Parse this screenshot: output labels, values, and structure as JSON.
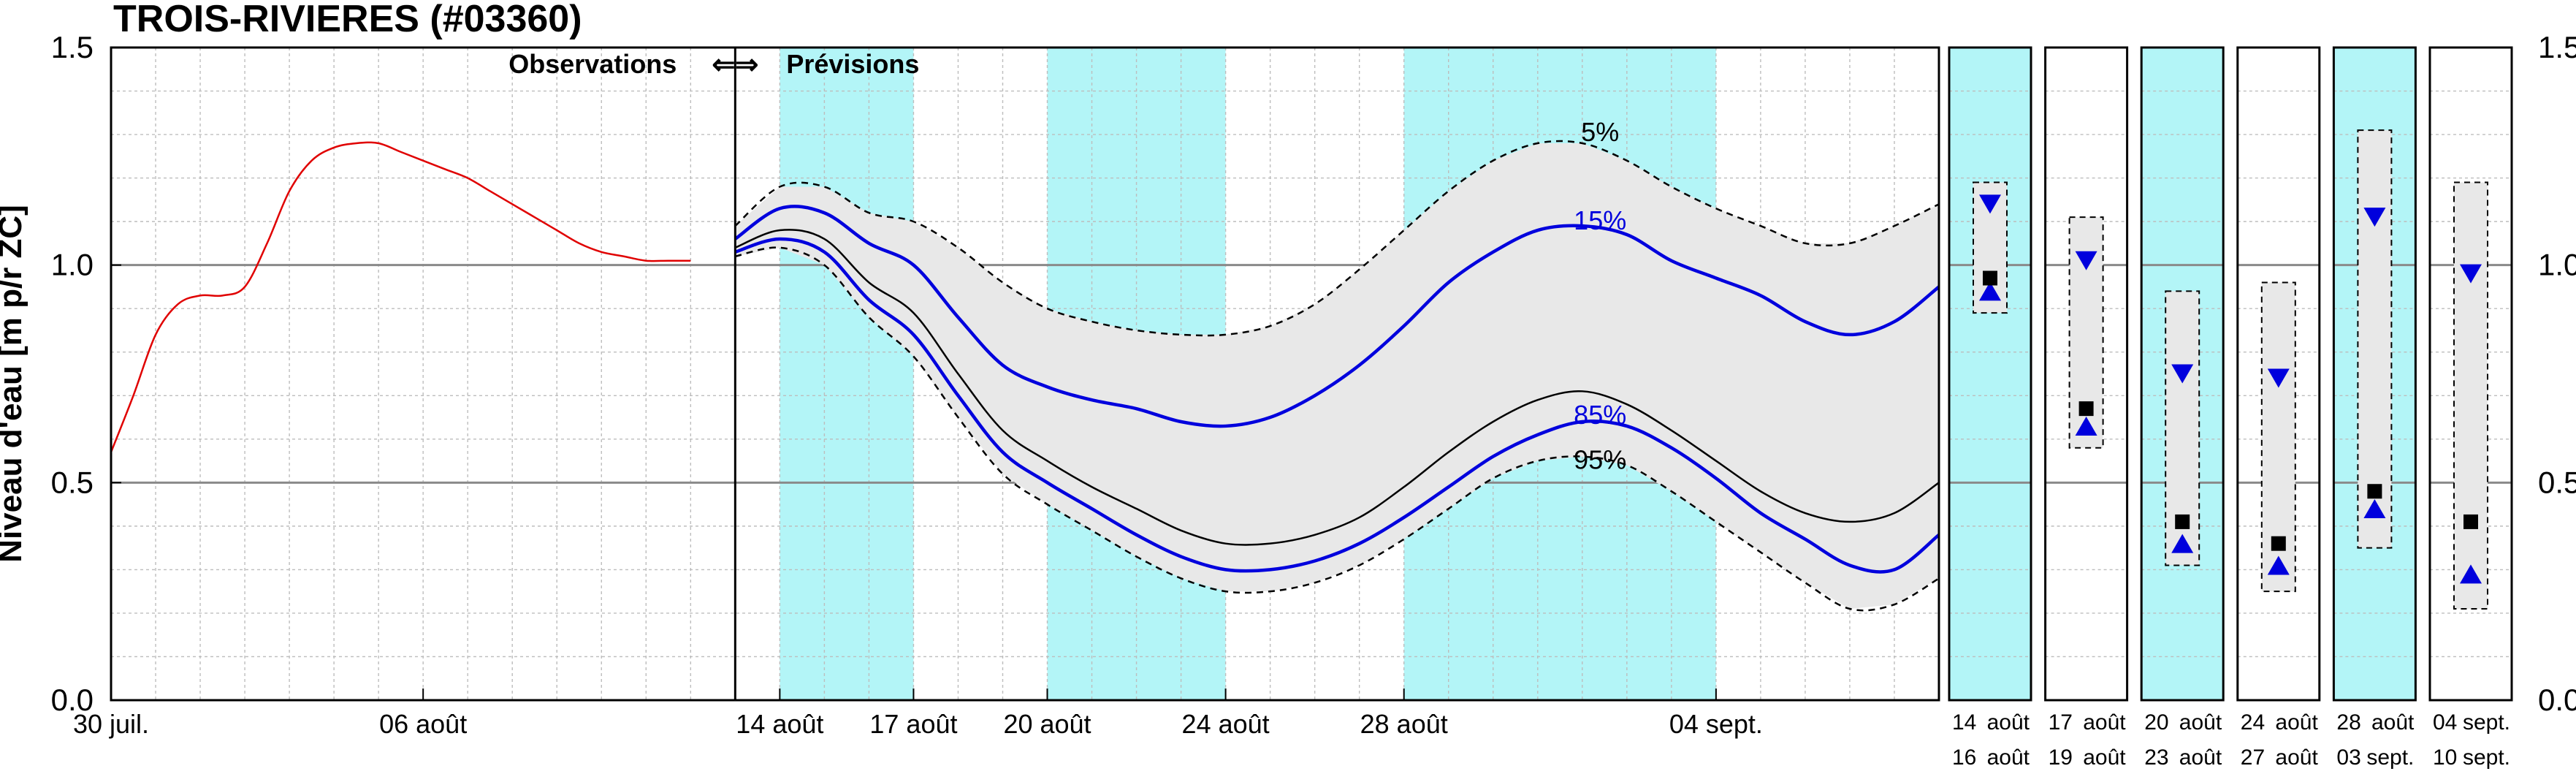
{
  "title": "TROIS-RIVIERES (#03360)",
  "chart_data": {
    "type": "line",
    "ylabel": "Niveau d'eau [m p/r ZC]",
    "ylim": [
      0.0,
      1.5
    ],
    "yticks": [
      "0.0",
      "0.5",
      "1.0",
      "1.5"
    ],
    "grid": true,
    "annotation_observations": "Observations",
    "annotation_arrows": "⇐⇒",
    "annotation_forecast": "Prévisions",
    "observations": {
      "color": "#e00000",
      "x": [
        0,
        0.5,
        1,
        1.5,
        2,
        2.5,
        3,
        3.5,
        4,
        4.5,
        5,
        5.5,
        6,
        6.5,
        7,
        7.5,
        8,
        8.5,
        9,
        9.5,
        10,
        10.5,
        11,
        11.5,
        12,
        12.5,
        13
      ],
      "y": [
        0.57,
        0.7,
        0.84,
        0.91,
        0.93,
        0.93,
        0.95,
        1.05,
        1.17,
        1.24,
        1.27,
        1.28,
        1.28,
        1.26,
        1.24,
        1.22,
        1.2,
        1.17,
        1.14,
        1.11,
        1.08,
        1.05,
        1.03,
        1.02,
        1.01,
        1.01,
        1.01
      ]
    },
    "x_tick_labels_main": [
      {
        "x": 0,
        "label": "30 juil."
      },
      {
        "x": 7,
        "label": "06 août"
      },
      {
        "x": 15,
        "label": "14 août"
      },
      {
        "x": 18,
        "label": "17 août"
      },
      {
        "x": 21,
        "label": "20 août"
      },
      {
        "x": 25,
        "label": "24 août"
      },
      {
        "x": 29,
        "label": "28 août"
      },
      {
        "x": 36,
        "label": "04 sept."
      }
    ],
    "shaded_periods": [
      [
        15,
        18
      ],
      [
        21,
        25
      ],
      [
        29,
        36
      ]
    ],
    "forecast_x": [
      14,
      15,
      16,
      17,
      18,
      19,
      20,
      21,
      22,
      23,
      24,
      25,
      26,
      27,
      28,
      29,
      30,
      31,
      32,
      33,
      34,
      35,
      36,
      37,
      38,
      39,
      40,
      41
    ],
    "series": [
      {
        "name": "5%",
        "style": "dashed",
        "color": "#000000",
        "y": [
          1.09,
          1.18,
          1.18,
          1.12,
          1.1,
          1.04,
          0.96,
          0.9,
          0.87,
          0.85,
          0.84,
          0.84,
          0.86,
          0.91,
          0.99,
          1.08,
          1.17,
          1.24,
          1.28,
          1.28,
          1.24,
          1.18,
          1.13,
          1.09,
          1.05,
          1.05,
          1.09,
          1.14
        ]
      },
      {
        "name": "15%",
        "style": "solid",
        "color": "#0000dd",
        "y": [
          1.06,
          1.13,
          1.12,
          1.05,
          1.0,
          0.88,
          0.77,
          0.72,
          0.69,
          0.67,
          0.64,
          0.63,
          0.65,
          0.7,
          0.77,
          0.86,
          0.96,
          1.03,
          1.08,
          1.09,
          1.07,
          1.01,
          0.97,
          0.93,
          0.87,
          0.84,
          0.87,
          0.95
        ]
      },
      {
        "name": "",
        "style": "solid",
        "color": "#000000",
        "y": [
          1.04,
          1.08,
          1.06,
          0.96,
          0.89,
          0.75,
          0.62,
          0.55,
          0.49,
          0.44,
          0.39,
          0.36,
          0.36,
          0.38,
          0.42,
          0.49,
          0.57,
          0.64,
          0.69,
          0.71,
          0.68,
          0.62,
          0.55,
          0.48,
          0.43,
          0.41,
          0.43,
          0.5
        ]
      },
      {
        "name": "85%",
        "style": "solid",
        "color": "#0000dd",
        "y": [
          1.03,
          1.06,
          1.03,
          0.92,
          0.84,
          0.7,
          0.57,
          0.5,
          0.44,
          0.38,
          0.33,
          0.3,
          0.3,
          0.32,
          0.36,
          0.42,
          0.49,
          0.56,
          0.61,
          0.64,
          0.63,
          0.58,
          0.51,
          0.43,
          0.37,
          0.31,
          0.3,
          0.38
        ]
      },
      {
        "name": "95%",
        "style": "dashed",
        "color": "#000000",
        "y": [
          1.02,
          1.04,
          1.0,
          0.88,
          0.79,
          0.65,
          0.52,
          0.45,
          0.39,
          0.33,
          0.28,
          0.25,
          0.25,
          0.27,
          0.31,
          0.37,
          0.44,
          0.51,
          0.55,
          0.56,
          0.54,
          0.48,
          0.41,
          0.34,
          0.27,
          0.21,
          0.22,
          0.28
        ]
      }
    ],
    "weekly_panels": [
      {
        "dates_top": [
          "14",
          "août"
        ],
        "dates_bottom": [
          "16",
          "août"
        ],
        "shaded": true,
        "box": [
          0.89,
          1.19
        ],
        "triangle_down": 1.14,
        "square": 0.97,
        "triangle_up": 0.94
      },
      {
        "dates_top": [
          "17",
          "août"
        ],
        "dates_bottom": [
          "19",
          "août"
        ],
        "shaded": false,
        "box": [
          0.58,
          1.11
        ],
        "triangle_down": 1.01,
        "square": 0.67,
        "triangle_up": 0.63
      },
      {
        "dates_top": [
          "20",
          "août"
        ],
        "dates_bottom": [
          "23",
          "août"
        ],
        "shaded": true,
        "box": [
          0.31,
          0.94
        ],
        "triangle_down": 0.75,
        "square": 0.41,
        "triangle_up": 0.36
      },
      {
        "dates_top": [
          "24",
          "août"
        ],
        "dates_bottom": [
          "27",
          "août"
        ],
        "shaded": false,
        "box": [
          0.25,
          0.96
        ],
        "triangle_down": 0.74,
        "square": 0.36,
        "triangle_up": 0.31
      },
      {
        "dates_top": [
          "28",
          "août"
        ],
        "dates_bottom": [
          "03",
          "sept."
        ],
        "shaded": true,
        "box": [
          0.35,
          1.31
        ],
        "triangle_down": 1.11,
        "square": 0.48,
        "triangle_up": 0.44
      },
      {
        "dates_top": [
          "04",
          "sept."
        ],
        "dates_bottom": [
          "10",
          "sept."
        ],
        "shaded": false,
        "box": [
          0.21,
          1.19
        ],
        "triangle_down": 0.98,
        "square": 0.41,
        "triangle_up": 0.29
      }
    ],
    "colors": {
      "shade": "#b3f5f7",
      "band": "#e8e8e8",
      "observation": "#e00000",
      "forecast_blue": "#0000dd",
      "grid_minor": "#bdbdbd",
      "grid_major": "#8a8a8a"
    }
  }
}
